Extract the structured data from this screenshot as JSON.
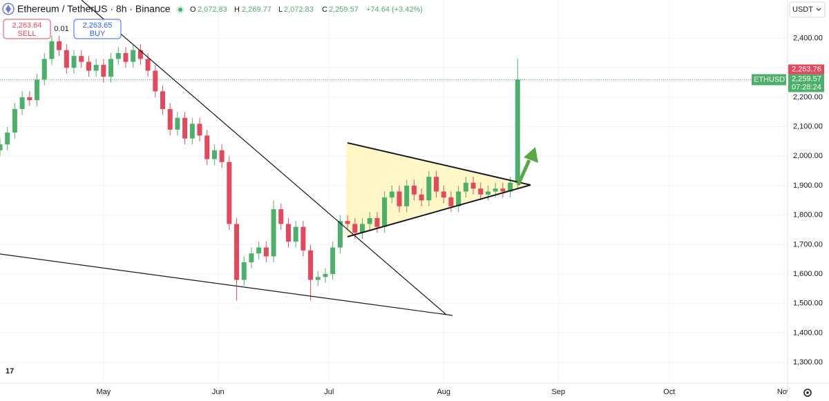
{
  "header": {
    "title": "Ethereum / TetherUS · 8h · Binance",
    "o_label": "O",
    "open": "2,072.83",
    "h_label": "H",
    "high": "2,269.77",
    "l_label": "L",
    "low": "2,072.83",
    "close": "2,259.57",
    "change": "+74.64 (+3.42%)"
  },
  "trade": {
    "sell_price": "2,263.64",
    "sell_label": "SELL",
    "buy_price": "2,263.65",
    "buy_label": "BUY",
    "spread": "0.01"
  },
  "currency_button": "USDT",
  "price_tags": {
    "symbol": "ETHUSDT",
    "ask": "2,263.76",
    "last": "2,259.57",
    "countdown": "07:28:24"
  },
  "chart_data": {
    "type": "candlestick",
    "up_color": "#4caf6a",
    "down_color": "#e5485c",
    "grid": true,
    "xlim": [
      0,
      213
    ],
    "xticks": [
      {
        "value": 28,
        "label": "May"
      },
      {
        "value": 59,
        "label": "Jun"
      },
      {
        "value": 89,
        "label": "Jul"
      },
      {
        "value": 120,
        "label": "Aug"
      },
      {
        "value": 151,
        "label": "Sep"
      },
      {
        "value": 181,
        "label": "Oct"
      },
      {
        "value": 212,
        "label": "Nov"
      }
    ],
    "ylim": [
      1230,
      2530
    ],
    "yticks": [
      {
        "value": 1300,
        "label": "1,300.00"
      },
      {
        "value": 1400,
        "label": "1,400.00"
      },
      {
        "value": 1500,
        "label": "1,500.00"
      },
      {
        "value": 1600,
        "label": "1,600.00"
      },
      {
        "value": 1700,
        "label": "1,700.00"
      },
      {
        "value": 1800,
        "label": "1,800.00"
      },
      {
        "value": 1900,
        "label": "1,900.00"
      },
      {
        "value": 2000,
        "label": "2,000.00"
      },
      {
        "value": 2100,
        "label": "2,100.00"
      },
      {
        "value": 2200,
        "label": "2,200.00"
      },
      {
        "value": 2300,
        "label": "2,300.00"
      },
      {
        "value": 2400,
        "label": "2,400.00"
      }
    ],
    "last_price": 2259.57,
    "x": [
      0,
      2,
      4,
      6,
      8,
      10,
      12,
      14,
      16,
      18,
      20,
      22,
      24,
      26,
      28,
      30,
      32,
      34,
      36,
      38,
      40,
      42,
      44,
      46,
      48,
      50,
      52,
      54,
      56,
      58,
      60,
      62,
      64,
      66,
      68,
      70,
      72,
      74,
      76,
      78,
      80,
      82,
      84,
      86,
      88,
      90,
      92,
      94,
      96,
      98,
      100,
      102,
      104,
      106,
      108,
      110,
      112,
      114,
      116,
      118,
      120,
      122,
      124,
      126,
      128,
      130,
      132,
      134,
      136,
      138,
      140
    ],
    "open": [
      2020,
      2040,
      2080,
      2160,
      2200,
      2190,
      2260,
      2330,
      2390,
      2360,
      2300,
      2340,
      2320,
      2290,
      2310,
      2270,
      2330,
      2350,
      2320,
      2360,
      2330,
      2290,
      2220,
      2160,
      2090,
      2130,
      2060,
      2110,
      2070,
      1990,
      2020,
      1980,
      1770,
      1580,
      1640,
      1670,
      1690,
      1660,
      1820,
      1770,
      1710,
      1760,
      1680,
      1580,
      1590,
      1600,
      1690,
      1780,
      1770,
      1740,
      1770,
      1790,
      1760,
      1860,
      1880,
      1830,
      1900,
      1870,
      1850,
      1930,
      1880,
      1860,
      1830,
      1880,
      1910,
      1890,
      1870,
      1880,
      1890,
      1880,
      1910
    ],
    "high": [
      2060,
      2100,
      2180,
      2220,
      2220,
      2280,
      2350,
      2410,
      2410,
      2380,
      2360,
      2360,
      2340,
      2330,
      2330,
      2350,
      2370,
      2370,
      2380,
      2380,
      2350,
      2310,
      2240,
      2180,
      2150,
      2150,
      2130,
      2130,
      2090,
      2040,
      2040,
      2000,
      1790,
      1660,
      1690,
      1710,
      1710,
      1850,
      1840,
      1790,
      1780,
      1780,
      1700,
      1610,
      1620,
      1710,
      1800,
      1800,
      1790,
      1790,
      1810,
      1810,
      1880,
      1900,
      1900,
      1920,
      1920,
      1890,
      1950,
      1950,
      1900,
      1880,
      1900,
      1930,
      1930,
      1910,
      1900,
      1910,
      1910,
      1930,
      2330
    ],
    "low": [
      2000,
      2020,
      2060,
      2140,
      2170,
      2170,
      2240,
      2310,
      2340,
      2280,
      2280,
      2300,
      2270,
      2270,
      2250,
      2250,
      2310,
      2300,
      2300,
      2310,
      2270,
      2200,
      2140,
      2070,
      2070,
      2040,
      2040,
      2050,
      1970,
      1970,
      1960,
      1750,
      1510,
      1560,
      1620,
      1650,
      1640,
      1640,
      1750,
      1690,
      1690,
      1660,
      1510,
      1560,
      1570,
      1580,
      1670,
      1750,
      1720,
      1720,
      1750,
      1740,
      1740,
      1840,
      1810,
      1810,
      1850,
      1830,
      1830,
      1860,
      1840,
      1810,
      1810,
      1860,
      1870,
      1850,
      1850,
      1860,
      1860,
      1860,
      1890
    ],
    "close": [
      2040,
      2080,
      2160,
      2200,
      2190,
      2260,
      2330,
      2390,
      2360,
      2300,
      2340,
      2320,
      2290,
      2310,
      2270,
      2330,
      2350,
      2320,
      2360,
      2330,
      2290,
      2220,
      2160,
      2090,
      2130,
      2060,
      2110,
      2070,
      1990,
      2020,
      1980,
      1770,
      1580,
      1640,
      1670,
      1690,
      1660,
      1820,
      1770,
      1710,
      1760,
      1680,
      1580,
      1590,
      1600,
      1690,
      1780,
      1770,
      1740,
      1770,
      1790,
      1760,
      1860,
      1880,
      1830,
      1900,
      1870,
      1850,
      1930,
      1880,
      1860,
      1830,
      1880,
      1910,
      1890,
      1870,
      1880,
      1890,
      1880,
      1910,
      2260
    ]
  }
}
